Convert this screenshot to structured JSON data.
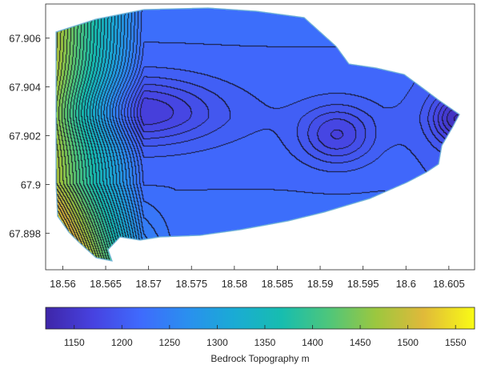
{
  "chart_data": {
    "type": "heatmap",
    "subtype": "filled-contour",
    "title": "",
    "xlabel": "",
    "ylabel": "",
    "xlim": [
      18.558,
      18.608
    ],
    "ylim": [
      67.8965,
      67.9074
    ],
    "x_ticks": [
      "18.56",
      "18.565",
      "18.57",
      "18.575",
      "18.58",
      "18.585",
      "18.59",
      "18.595",
      "18.6",
      "18.605"
    ],
    "y_ticks": [
      "67.906",
      "67.904",
      "67.902",
      "67.9",
      "67.898"
    ],
    "x_tick_values": [
      18.56,
      18.565,
      18.57,
      18.575,
      18.58,
      18.585,
      18.59,
      18.595,
      18.6,
      18.605
    ],
    "y_tick_values": [
      67.906,
      67.904,
      67.902,
      67.9,
      67.898
    ],
    "colorbar": {
      "label": "Bedrock Topography m",
      "ticks": [
        "1150",
        "1200",
        "1250",
        "1300",
        "1350",
        "1400",
        "1450",
        "1500",
        "1550"
      ],
      "tick_values": [
        1150,
        1200,
        1250,
        1300,
        1350,
        1400,
        1450,
        1500,
        1550
      ],
      "range": [
        1120,
        1570
      ],
      "colormap": "parula",
      "orientation": "horizontal"
    },
    "minima": [
      {
        "x": 18.569,
        "y": 67.903,
        "value": 1160
      },
      {
        "x": 18.592,
        "y": 67.902,
        "value": 1165
      },
      {
        "x": 18.606,
        "y": 67.9027,
        "value": 1150
      }
    ],
    "grid": false,
    "contour_lines": true
  }
}
